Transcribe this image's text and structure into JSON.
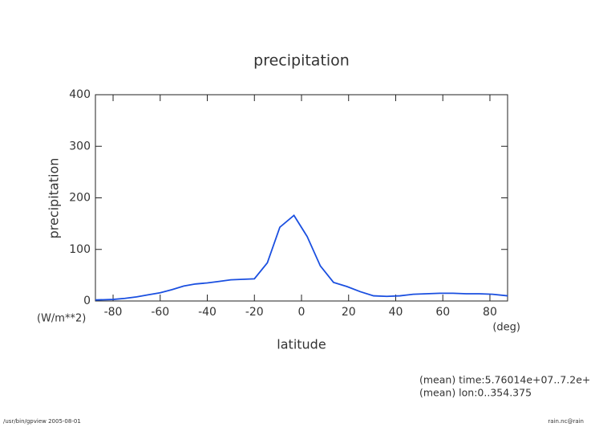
{
  "chart_data": {
    "type": "line",
    "title": "precipitation",
    "y_label": "precipitation",
    "x_label": "latitude",
    "y_unit": "(W/m**2)",
    "x_unit": "(deg)",
    "x": [
      -87.5,
      -80,
      -75,
      -70,
      -65,
      -60,
      -55,
      -50,
      -45,
      -40,
      -35,
      -30,
      -25,
      -20,
      -14.5,
      -9.2,
      -3.2,
      2.4,
      8,
      13.6,
      19.3,
      25,
      30.6,
      36.2,
      41.8,
      47.4,
      53,
      58.7,
      64.3,
      69.9,
      75.5,
      81.1,
      87.5
    ],
    "series": [
      {
        "name": "precipitation",
        "color": "#1a4fe0",
        "values": [
          2,
          3,
          5,
          8,
          12,
          16,
          22,
          29,
          33,
          35,
          38,
          41,
          42,
          43,
          74,
          143,
          166,
          125,
          68,
          36,
          28,
          18,
          10,
          9,
          10,
          13,
          14,
          15,
          15,
          14,
          14,
          13,
          10
        ]
      }
    ],
    "xlim": [
      -87.5,
      87.5
    ],
    "ylim": [
      0,
      400
    ],
    "xticks": [
      -80,
      -60,
      -40,
      -20,
      0,
      20,
      40,
      60,
      80
    ],
    "yticks": [
      0,
      100,
      200,
      300,
      400
    ],
    "notes": [
      "(mean) time:5.76014e+07..7.2e+",
      "(mean) lon:0..354.375"
    ],
    "footer_left": "/usr/bin/gpview  2005-08-01",
    "footer_right": "rain.nc@rain"
  }
}
